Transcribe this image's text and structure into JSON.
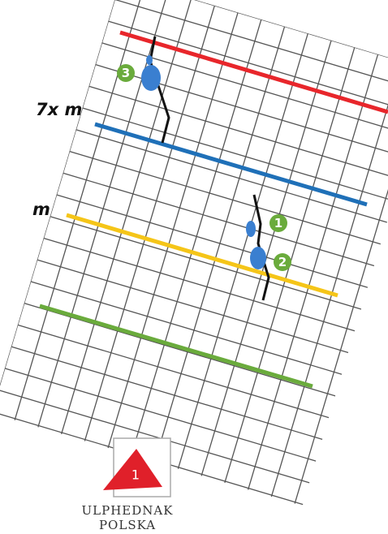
{
  "labels": {
    "distance_top": "7x m",
    "distance_mid": "m"
  },
  "markers": [
    {
      "label": "3"
    },
    {
      "label": "1"
    },
    {
      "label": "2"
    }
  ],
  "start": {
    "label": "1"
  },
  "footer": [
    "ULPHEDNAK",
    "POLSKA"
  ]
}
